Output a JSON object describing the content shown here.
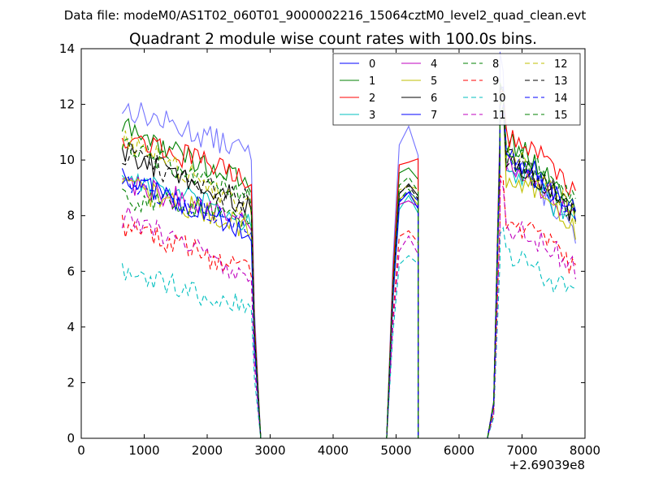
{
  "chart_data": {
    "type": "line",
    "suptitle": "Data file: modeM0/AS1T02_060T01_9000002216_15064cztM0_level2_quad_clean.evt",
    "title": "Quadrant 2 module wise count rates with 100.0s bins.",
    "xlabel": "",
    "ylabel": "",
    "x_offset_label": "+2.69039e8",
    "xlim": [
      0,
      8000
    ],
    "ylim": [
      0,
      14
    ],
    "xticks": [
      "0",
      "1000",
      "2000",
      "3000",
      "4000",
      "5000",
      "6000",
      "7000",
      "8000"
    ],
    "yticks": [
      "0",
      "2",
      "4",
      "6",
      "8",
      "10",
      "12",
      "14"
    ],
    "grid": false,
    "legend_position": "upper-right",
    "segments": [
      {
        "start": 650,
        "end": 2650
      },
      {
        "start": 5050,
        "end": 5350
      },
      {
        "start": 6650,
        "end": 7850
      }
    ],
    "gap_edges": [
      {
        "left": 2750,
        "right": 2850
      },
      {
        "left": 4850,
        "right": 4950,
        "edge": 5050
      },
      {
        "left": 5350,
        "right": 5450
      },
      {
        "left": 6450,
        "right": 6550,
        "edge": 6650
      }
    ],
    "series": [
      {
        "name": "0",
        "color": "#0000ff",
        "dash": "solid",
        "s1": [
          11.9,
          10.3
        ],
        "s2": [
          10.5,
          11.1,
          10.3
        ],
        "s3": [
          13.5,
          10.0,
          7.2
        ]
      },
      {
        "name": "1",
        "color": "#008000",
        "dash": "solid",
        "s1": [
          11.2,
          9.1
        ],
        "s2": [
          9.5,
          9.8,
          9.3
        ],
        "s3": [
          12.8,
          10.6,
          8.2
        ]
      },
      {
        "name": "2",
        "color": "#ff0000",
        "dash": "solid",
        "s1": [
          10.9,
          9.4
        ],
        "s2": [
          9.8,
          9.9,
          9.9
        ],
        "s3": [
          12.9,
          10.9,
          8.8
        ]
      },
      {
        "name": "3",
        "color": "#00bfbf",
        "dash": "solid",
        "s1": [
          9.5,
          7.8
        ],
        "s2": [
          8.2,
          8.6,
          8.1
        ],
        "s3": [
          11.5,
          9.6,
          7.6
        ]
      },
      {
        "name": "4",
        "color": "#bf00bf",
        "dash": "solid",
        "s1": [
          9.3,
          7.7
        ],
        "s2": [
          8.4,
          8.6,
          8.2
        ],
        "s3": [
          11.6,
          9.8,
          7.8
        ]
      },
      {
        "name": "5",
        "color": "#bfbf00",
        "dash": "solid",
        "s1": [
          9.1,
          7.6
        ],
        "s2": [
          8.6,
          8.8,
          8.4
        ],
        "s3": [
          12.0,
          9.4,
          7.5
        ]
      },
      {
        "name": "6",
        "color": "#000000",
        "dash": "solid",
        "s1": [
          10.3,
          8.4
        ],
        "s2": [
          8.8,
          9.0,
          8.6
        ],
        "s3": [
          12.2,
          10.0,
          8.0
        ]
      },
      {
        "name": "7",
        "color": "#0000ff",
        "dash": "solid",
        "s1": [
          9.5,
          7.3
        ],
        "s2": [
          8.5,
          8.9,
          8.3
        ],
        "s3": [
          12.4,
          10.2,
          7.9
        ]
      },
      {
        "name": "8",
        "color": "#008000",
        "dash": "dashed",
        "s1": [
          8.7,
          8.0
        ],
        "s2": [
          8.6,
          8.9,
          8.4
        ],
        "s3": [
          11.8,
          9.9,
          7.9
        ]
      },
      {
        "name": "9",
        "color": "#ff0000",
        "dash": "dashed",
        "s1": [
          7.7,
          6.0
        ],
        "s2": [
          7.3,
          7.6,
          7.1
        ],
        "s3": [
          9.2,
          7.9,
          6.0
        ]
      },
      {
        "name": "10",
        "color": "#00bfbf",
        "dash": "dashed",
        "s1": [
          5.9,
          4.8
        ],
        "s2": [
          6.3,
          6.6,
          6.2
        ],
        "s3": [
          7.5,
          6.5,
          5.0
        ]
      },
      {
        "name": "11",
        "color": "#bf00bf",
        "dash": "dashed",
        "s1": [
          8.0,
          5.9
        ],
        "s2": [
          6.8,
          7.2,
          6.7
        ],
        "s3": [
          9.0,
          7.6,
          6.1
        ]
      },
      {
        "name": "12",
        "color": "#bfbf00",
        "dash": "dashed",
        "s1": [
          10.8,
          8.3
        ],
        "s2": [
          9.0,
          9.2,
          8.9
        ],
        "s3": [
          12.5,
          10.2,
          7.9
        ]
      },
      {
        "name": "13",
        "color": "#000000",
        "dash": "dashed",
        "s1": [
          10.2,
          8.5
        ],
        "s2": [
          8.9,
          9.1,
          8.7
        ],
        "s3": [
          12.3,
          10.1,
          8.1
        ]
      },
      {
        "name": "14",
        "color": "#0000ff",
        "dash": "dashed",
        "s1": [
          9.4,
          7.6
        ],
        "s2": [
          8.6,
          8.8,
          8.5
        ],
        "s3": [
          12.2,
          9.9,
          8.1
        ]
      },
      {
        "name": "15",
        "color": "#008000",
        "dash": "dashed",
        "s1": [
          10.6,
          8.6
        ],
        "s2": [
          9.2,
          9.5,
          9.0
        ],
        "s3": [
          12.4,
          10.4,
          8.4
        ]
      }
    ]
  }
}
